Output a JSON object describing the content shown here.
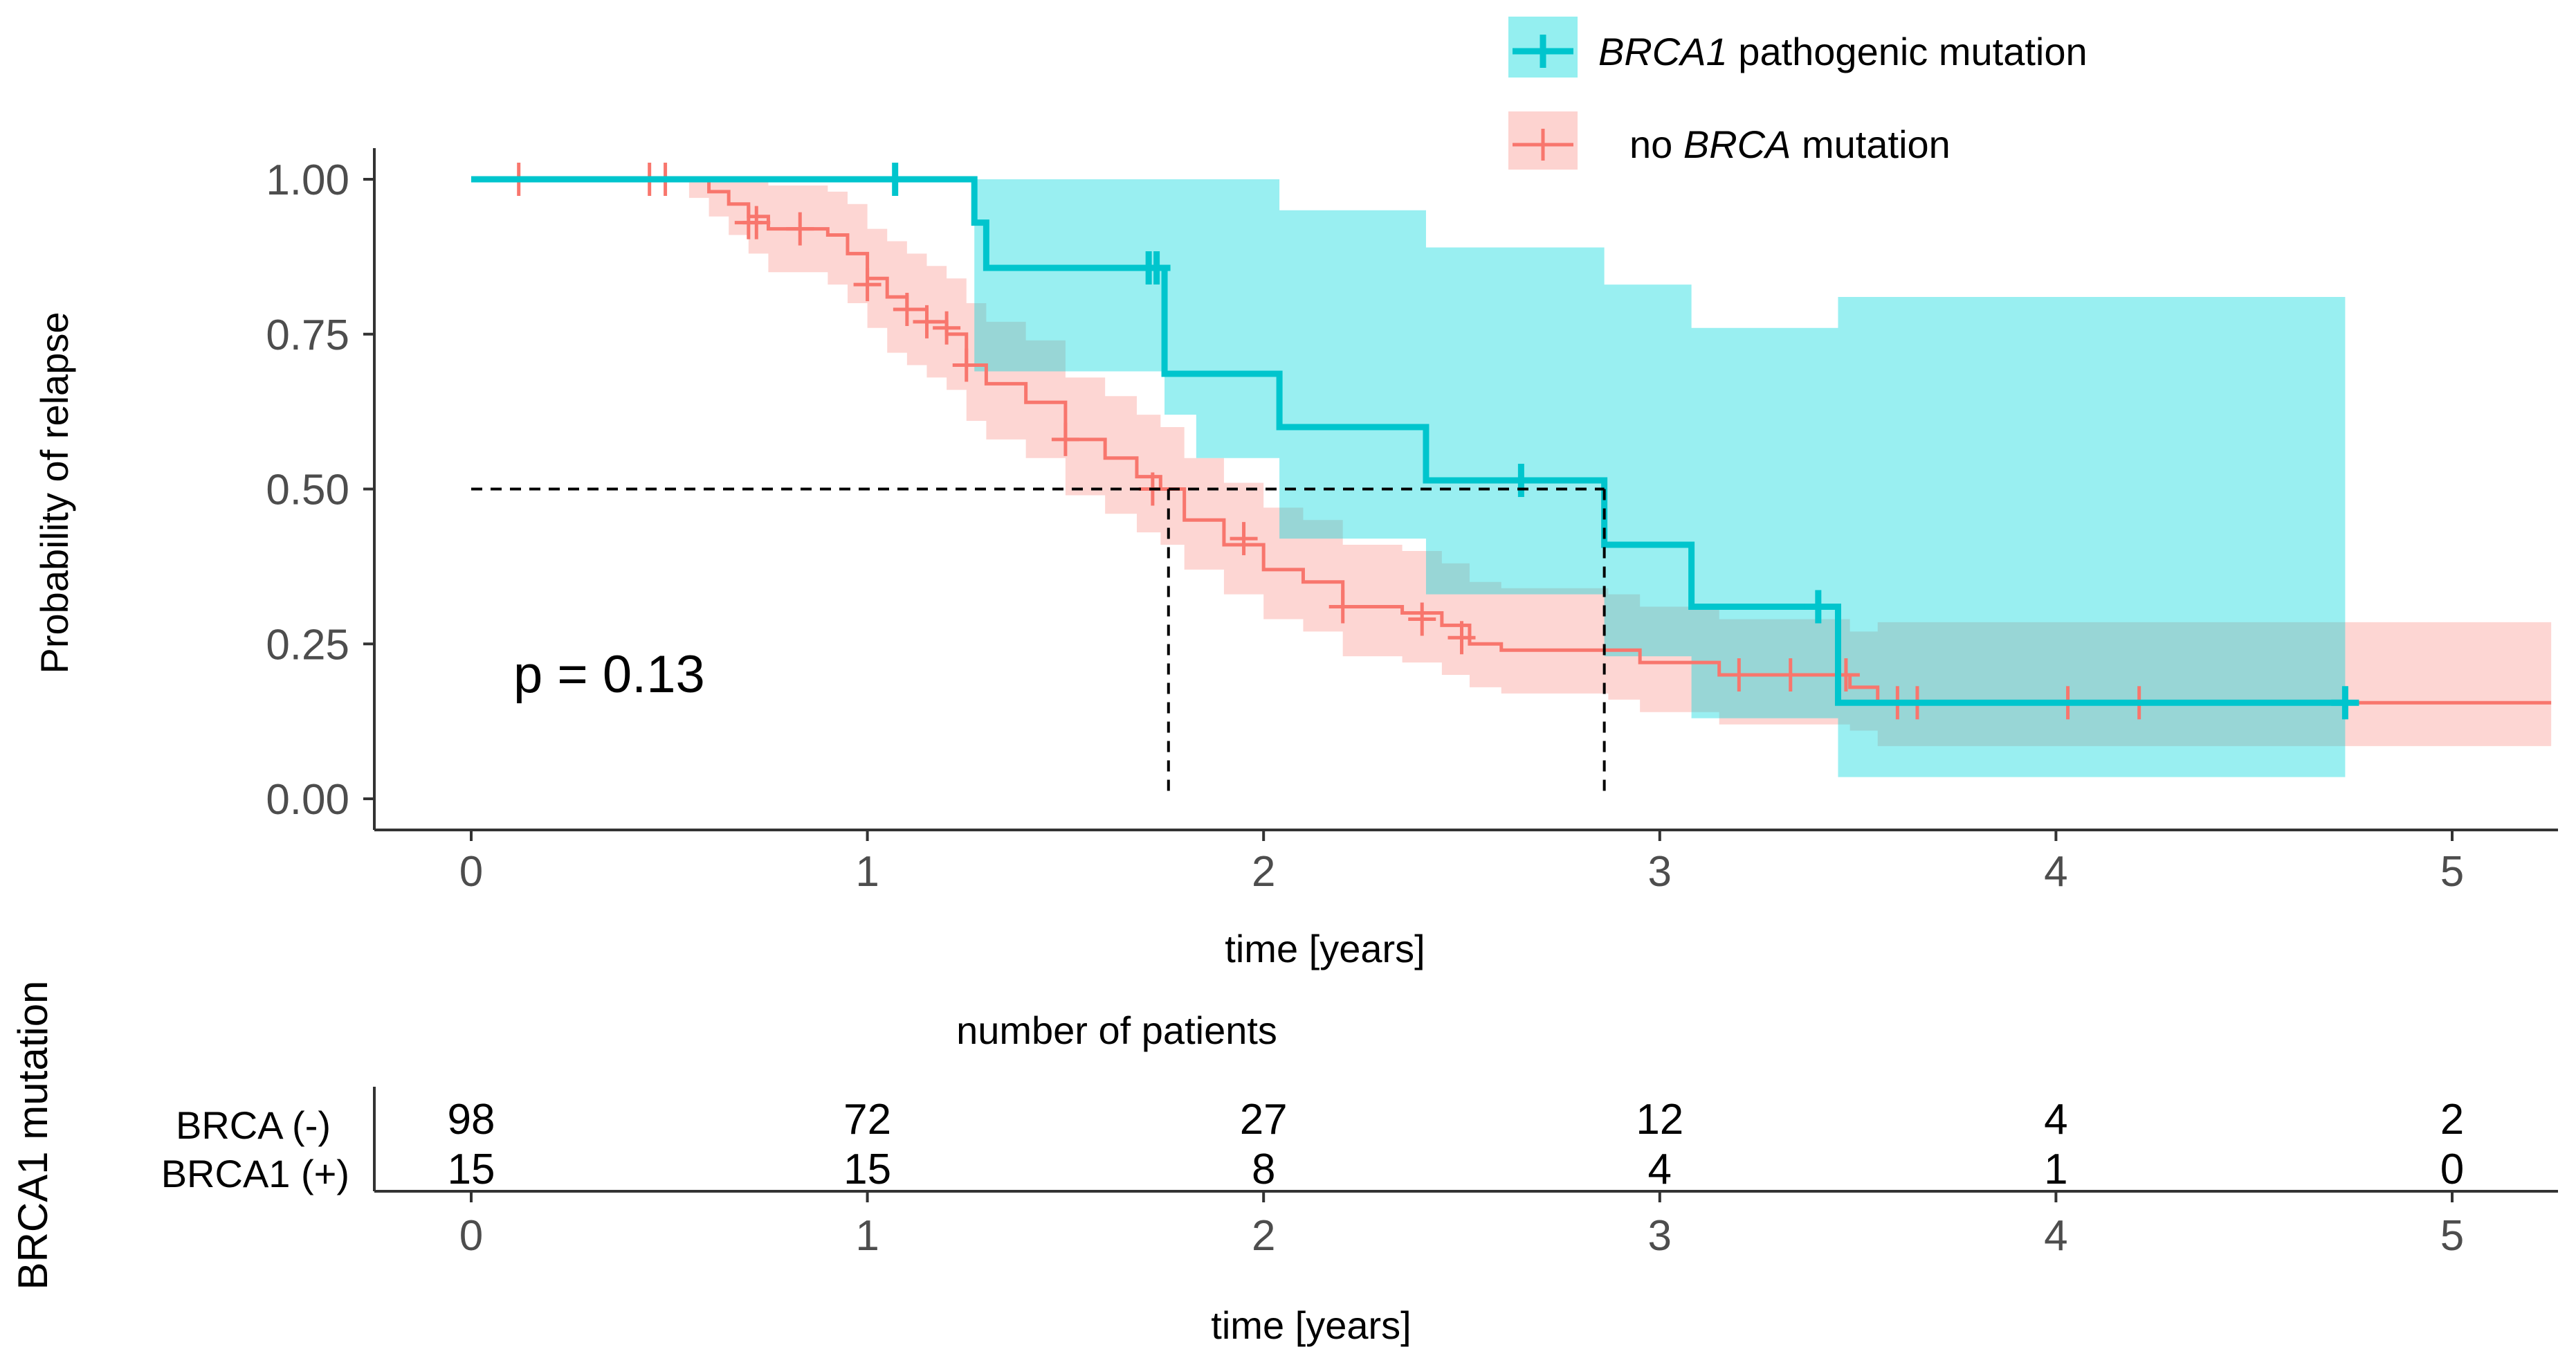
{
  "chart_data": {
    "type": "line",
    "subtype": "kaplan-meier",
    "ylabel": "Probability of relapse",
    "xlabel": "time [years]",
    "xlim": [
      0,
      5.25
    ],
    "ylim": [
      0,
      1
    ],
    "xticks": [
      0,
      1,
      2,
      3,
      4,
      5
    ],
    "yticks": [
      "0.00",
      "0.25",
      "0.50",
      "0.75",
      "1.00"
    ],
    "pvalue_text": "p = 0.13",
    "grid": false,
    "legend_position": "top-right",
    "median_line_y": 0.5,
    "median_times": [
      1.76,
      2.86
    ],
    "series": [
      {
        "name": "no BRCA mutation",
        "legend_italic": "BRCA",
        "legend_prefix": "no ",
        "legend_suffix": " mutation",
        "color": "#F8766D",
        "steps": [
          [
            0,
            1
          ],
          [
            0.55,
            1
          ],
          [
            0.6,
            0.98
          ],
          [
            0.65,
            0.96
          ],
          [
            0.7,
            0.94
          ],
          [
            0.75,
            0.92
          ],
          [
            0.9,
            0.91
          ],
          [
            0.95,
            0.88
          ],
          [
            1.0,
            0.84
          ],
          [
            1.05,
            0.81
          ],
          [
            1.1,
            0.79
          ],
          [
            1.15,
            0.77
          ],
          [
            1.2,
            0.75
          ],
          [
            1.25,
            0.7
          ],
          [
            1.3,
            0.67
          ],
          [
            1.4,
            0.64
          ],
          [
            1.5,
            0.58
          ],
          [
            1.6,
            0.55
          ],
          [
            1.68,
            0.52
          ],
          [
            1.74,
            0.5
          ],
          [
            1.8,
            0.45
          ],
          [
            1.9,
            0.41
          ],
          [
            2.0,
            0.37
          ],
          [
            2.1,
            0.35
          ],
          [
            2.2,
            0.31
          ],
          [
            2.35,
            0.3
          ],
          [
            2.45,
            0.28
          ],
          [
            2.52,
            0.25
          ],
          [
            2.6,
            0.24
          ],
          [
            2.87,
            0.24
          ],
          [
            2.95,
            0.22
          ],
          [
            3.15,
            0.2
          ],
          [
            3.48,
            0.18
          ],
          [
            3.55,
            0.155
          ],
          [
            5.25,
            0.155
          ]
        ],
        "ci_lower": [
          [
            0,
            1
          ],
          [
            0.55,
            0.97
          ],
          [
            0.6,
            0.94
          ],
          [
            0.65,
            0.91
          ],
          [
            0.7,
            0.88
          ],
          [
            0.75,
            0.85
          ],
          [
            0.9,
            0.83
          ],
          [
            0.95,
            0.8
          ],
          [
            1.0,
            0.76
          ],
          [
            1.05,
            0.72
          ],
          [
            1.1,
            0.7
          ],
          [
            1.15,
            0.68
          ],
          [
            1.2,
            0.66
          ],
          [
            1.25,
            0.61
          ],
          [
            1.3,
            0.58
          ],
          [
            1.4,
            0.55
          ],
          [
            1.5,
            0.49
          ],
          [
            1.6,
            0.46
          ],
          [
            1.68,
            0.43
          ],
          [
            1.74,
            0.41
          ],
          [
            1.8,
            0.37
          ],
          [
            1.9,
            0.33
          ],
          [
            2.0,
            0.29
          ],
          [
            2.1,
            0.27
          ],
          [
            2.2,
            0.23
          ],
          [
            2.35,
            0.22
          ],
          [
            2.45,
            0.2
          ],
          [
            2.52,
            0.18
          ],
          [
            2.6,
            0.17
          ],
          [
            2.87,
            0.16
          ],
          [
            2.95,
            0.14
          ],
          [
            3.15,
            0.12
          ],
          [
            3.48,
            0.11
          ],
          [
            3.55,
            0.085
          ],
          [
            5.25,
            0.085
          ]
        ],
        "ci_upper": [
          [
            0,
            1
          ],
          [
            0.55,
            1
          ],
          [
            0.6,
            1
          ],
          [
            0.65,
            1
          ],
          [
            0.7,
            1
          ],
          [
            0.75,
            0.99
          ],
          [
            0.9,
            0.98
          ],
          [
            0.95,
            0.96
          ],
          [
            1.0,
            0.92
          ],
          [
            1.05,
            0.9
          ],
          [
            1.1,
            0.88
          ],
          [
            1.15,
            0.86
          ],
          [
            1.2,
            0.84
          ],
          [
            1.25,
            0.8
          ],
          [
            1.3,
            0.77
          ],
          [
            1.4,
            0.74
          ],
          [
            1.5,
            0.68
          ],
          [
            1.6,
            0.65
          ],
          [
            1.68,
            0.62
          ],
          [
            1.74,
            0.6
          ],
          [
            1.8,
            0.55
          ],
          [
            1.9,
            0.51
          ],
          [
            2.0,
            0.47
          ],
          [
            2.1,
            0.45
          ],
          [
            2.2,
            0.41
          ],
          [
            2.35,
            0.4
          ],
          [
            2.45,
            0.38
          ],
          [
            2.52,
            0.35
          ],
          [
            2.6,
            0.34
          ],
          [
            2.87,
            0.33
          ],
          [
            2.95,
            0.31
          ],
          [
            3.15,
            0.29
          ],
          [
            3.48,
            0.27
          ],
          [
            3.55,
            0.285
          ],
          [
            5.25,
            0.285
          ]
        ],
        "censored": [
          [
            0.12,
            1
          ],
          [
            0.45,
            1
          ],
          [
            0.49,
            1
          ],
          [
            0.7,
            0.93
          ],
          [
            0.72,
            0.93
          ],
          [
            0.83,
            0.92
          ],
          [
            1.0,
            0.83
          ],
          [
            1.1,
            0.79
          ],
          [
            1.15,
            0.77
          ],
          [
            1.2,
            0.76
          ],
          [
            1.25,
            0.7
          ],
          [
            1.5,
            0.58
          ],
          [
            1.72,
            0.5
          ],
          [
            1.95,
            0.42
          ],
          [
            2.2,
            0.31
          ],
          [
            2.4,
            0.29
          ],
          [
            2.5,
            0.26
          ],
          [
            3.2,
            0.2
          ],
          [
            3.33,
            0.2
          ],
          [
            3.47,
            0.2
          ],
          [
            3.6,
            0.155
          ],
          [
            3.65,
            0.155
          ],
          [
            4.03,
            0.155
          ],
          [
            4.21,
            0.155
          ]
        ]
      },
      {
        "name": "BRCA1 pathogenic mutation",
        "legend_italic": "BRCA1",
        "legend_prefix": "",
        "legend_suffix": " pathogenic mutation",
        "color": "#00C5CD",
        "steps": [
          [
            0,
            1
          ],
          [
            1.27,
            0.93
          ],
          [
            1.3,
            0.857
          ],
          [
            1.75,
            0.686
          ],
          [
            2.04,
            0.6
          ],
          [
            2.41,
            0.514
          ],
          [
            2.86,
            0.41
          ],
          [
            3.08,
            0.31
          ],
          [
            3.45,
            0.155
          ],
          [
            4.73,
            0.155
          ]
        ],
        "ci_lower": [
          [
            0,
            1
          ],
          [
            1.27,
            0.69
          ],
          [
            1.75,
            0.62
          ],
          [
            1.83,
            0.55
          ],
          [
            2.04,
            0.42
          ],
          [
            2.41,
            0.33
          ],
          [
            2.86,
            0.23
          ],
          [
            3.08,
            0.13
          ],
          [
            3.45,
            0.035
          ],
          [
            4.73,
            0.035
          ]
        ],
        "ci_upper": [
          [
            0,
            1
          ],
          [
            1.27,
            1
          ],
          [
            2.04,
            0.95
          ],
          [
            2.41,
            0.89
          ],
          [
            2.86,
            0.83
          ],
          [
            3.08,
            0.76
          ],
          [
            3.45,
            0.81
          ],
          [
            4.73,
            0.81
          ]
        ],
        "censored": [
          [
            1.07,
            1
          ],
          [
            1.71,
            0.857
          ],
          [
            1.73,
            0.857
          ],
          [
            2.65,
            0.514
          ],
          [
            3.4,
            0.31
          ],
          [
            4.73,
            0.155
          ]
        ]
      }
    ],
    "risk_table": {
      "title": "number of patients",
      "ylabel": "BRCA1 mutation",
      "xlabel": "time [years]",
      "times": [
        0,
        1,
        2,
        3,
        4,
        5
      ],
      "rows": [
        {
          "label": "BRCA (-)",
          "values": [
            98,
            72,
            27,
            12,
            4,
            2
          ]
        },
        {
          "label": "BRCA1 (+)",
          "values": [
            15,
            15,
            8,
            4,
            1,
            0
          ]
        }
      ]
    }
  }
}
